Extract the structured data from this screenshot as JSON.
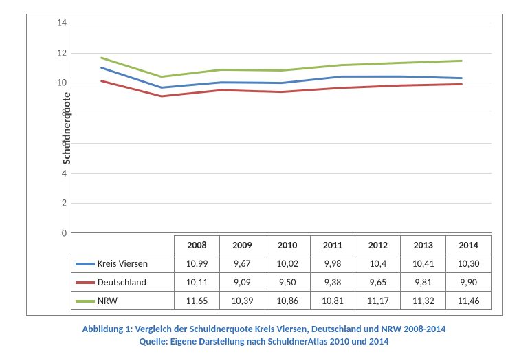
{
  "chart": {
    "type": "line",
    "ylabel": "Schuldnerquote",
    "ylim": [
      0,
      14
    ],
    "ytick_step": 2,
    "categories": [
      "2008",
      "2009",
      "2010",
      "2011",
      "2012",
      "2013",
      "2014"
    ],
    "grid_color": "#d9d9d9",
    "axis_color": "#808080",
    "background_color": "#ffffff",
    "label_fontsize": 14,
    "ylabel_fontsize": 16,
    "line_width": 3,
    "series": [
      {
        "name": "Kreis Viersen",
        "color": "#4f81bd",
        "values": [
          10.99,
          9.67,
          10.02,
          9.98,
          10.4,
          10.41,
          10.3
        ],
        "display": [
          "10,99",
          "9,67",
          "10,02",
          "9,98",
          "10,4",
          "10,41",
          "10,30"
        ]
      },
      {
        "name": "Deutschland",
        "color": "#c0504d",
        "values": [
          10.11,
          9.09,
          9.5,
          9.38,
          9.65,
          9.81,
          9.9
        ],
        "display": [
          "10,11",
          "9,09",
          "9,50",
          "9,38",
          "9,65",
          "9,81",
          "9,90"
        ]
      },
      {
        "name": "NRW",
        "color": "#9bbb59",
        "values": [
          11.65,
          10.39,
          10.86,
          10.81,
          11.17,
          11.32,
          11.46
        ],
        "display": [
          "11,65",
          "10,39",
          "10,86",
          "10,81",
          "11,17",
          "11,32",
          "11,46"
        ]
      }
    ]
  },
  "caption": {
    "line1": "Abbildung 1: Vergleich der Schuldnerquote Kreis Viersen, Deutschland und NRW 2008-2014",
    "line2": "Quelle: Eigene Darstellung nach SchuldnerAtlas 2010 und 2014",
    "color": "#2f6eba"
  }
}
